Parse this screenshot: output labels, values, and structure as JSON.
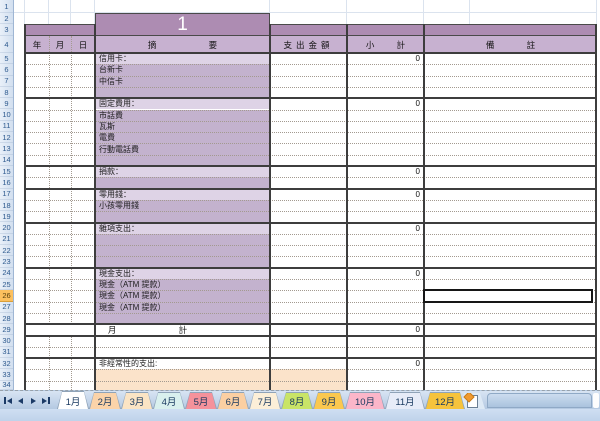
{
  "table": {
    "month_banner": "1",
    "col_year": "年",
    "col_month": "月",
    "col_day": "日",
    "col_summary": "摘 要",
    "col_amount": "支出金額",
    "col_subtotal": "小 計",
    "col_note": "備 註"
  },
  "row_numbers": [
    "1",
    "2",
    "3",
    "4",
    "5",
    "6",
    "7",
    "8",
    "9",
    "10",
    "11",
    "12",
    "13",
    "14",
    "15",
    "16",
    "17",
    "18",
    "19",
    "20",
    "21",
    "22",
    "23",
    "24",
    "25",
    "26",
    "27",
    "28",
    "29",
    "30",
    "31",
    "32",
    "33",
    "34"
  ],
  "selection": {
    "active_row": 26,
    "active_cell_column": "備 註"
  },
  "rows": [
    {
      "n": 5,
      "label": "信用卡：",
      "fill": "light",
      "subtotal": "0"
    },
    {
      "n": 6,
      "label": "台新卡",
      "fill": "mid"
    },
    {
      "n": 7,
      "label": "中信卡",
      "fill": "mid"
    },
    {
      "n": 8,
      "fill": "mid"
    },
    {
      "n": 9,
      "label": "固定費用：",
      "fill": "light",
      "subtotal": "0"
    },
    {
      "n": 10,
      "label": "市話費",
      "fill": "mid"
    },
    {
      "n": 11,
      "label": "瓦斯",
      "fill": "mid"
    },
    {
      "n": 12,
      "label": "電費",
      "fill": "mid"
    },
    {
      "n": 13,
      "label": "行動電話費",
      "fill": "mid"
    },
    {
      "n": 14,
      "fill": "mid"
    },
    {
      "n": 15,
      "label": "捐款：",
      "fill": "light",
      "subtotal": "0"
    },
    {
      "n": 16,
      "fill": "mid"
    },
    {
      "n": 17,
      "label": "零用錢：",
      "fill": "light",
      "subtotal": "0"
    },
    {
      "n": 18,
      "label": "小孩零用錢",
      "fill": "mid"
    },
    {
      "n": 19,
      "fill": "mid"
    },
    {
      "n": 20,
      "label": "雜項支出：",
      "fill": "light",
      "subtotal": "0"
    },
    {
      "n": 21,
      "fill": "mid"
    },
    {
      "n": 22,
      "fill": "mid"
    },
    {
      "n": 23,
      "fill": "mid"
    },
    {
      "n": 24,
      "label": "現金支出：",
      "fill": "light",
      "subtotal": "0"
    },
    {
      "n": 25,
      "label": "現金（ATM 提款）",
      "fill": "mid"
    },
    {
      "n": 26,
      "label": "現金（ATM 提款）",
      "fill": "mid"
    },
    {
      "n": 27,
      "label": "現金（ATM 提款）",
      "fill": "mid"
    },
    {
      "n": 28,
      "fill": "mid"
    },
    {
      "n": 29,
      "label": "月 計",
      "type": "monthly_total",
      "subtotal": "0"
    },
    {
      "n": 30
    },
    {
      "n": 31
    },
    {
      "n": 32,
      "label": "非經常性的支出:",
      "subtotal": "0"
    },
    {
      "n": 33,
      "fill": "peach"
    },
    {
      "n": 34,
      "fill": "peach"
    }
  ],
  "section_breaks": [
    5,
    9,
    15,
    17,
    20,
    24,
    29,
    30,
    32
  ],
  "colors": {
    "band_dark": "#ad8cb2",
    "band_header": "#c7b1d0",
    "fill_light": "#ded3e6",
    "fill_mid": "#c3b2ce",
    "fill_peach": "#fbe3ca",
    "row_highlight": "#fcc05e",
    "tab_text": "#17375e"
  },
  "icons": {
    "nav_first": "first-sheet-icon",
    "nav_prev": "previous-sheet-icon",
    "nav_next": "next-sheet-icon",
    "nav_last": "last-sheet-icon",
    "insert_sheet": "insert-worksheet-icon"
  },
  "tabs": [
    {
      "label": "1月",
      "color": "#ffffff",
      "active": true
    },
    {
      "label": "2月",
      "color": "#fbd3a9"
    },
    {
      "label": "3月",
      "color": "#fbe4c4"
    },
    {
      "label": "4月",
      "color": "#d9f0ee"
    },
    {
      "label": "5月",
      "color": "#f5929b"
    },
    {
      "label": "6月",
      "color": "#fbcfa2"
    },
    {
      "label": "7月",
      "color": "#fcefd8"
    },
    {
      "label": "8月",
      "color": "#c9e467"
    },
    {
      "label": "9月",
      "color": "#fbc84f"
    },
    {
      "label": "10月",
      "color": "#fbb6c9"
    },
    {
      "label": "11月",
      "color": "#e7ecf8"
    },
    {
      "label": "12月",
      "color": "#f6c33c"
    }
  ]
}
